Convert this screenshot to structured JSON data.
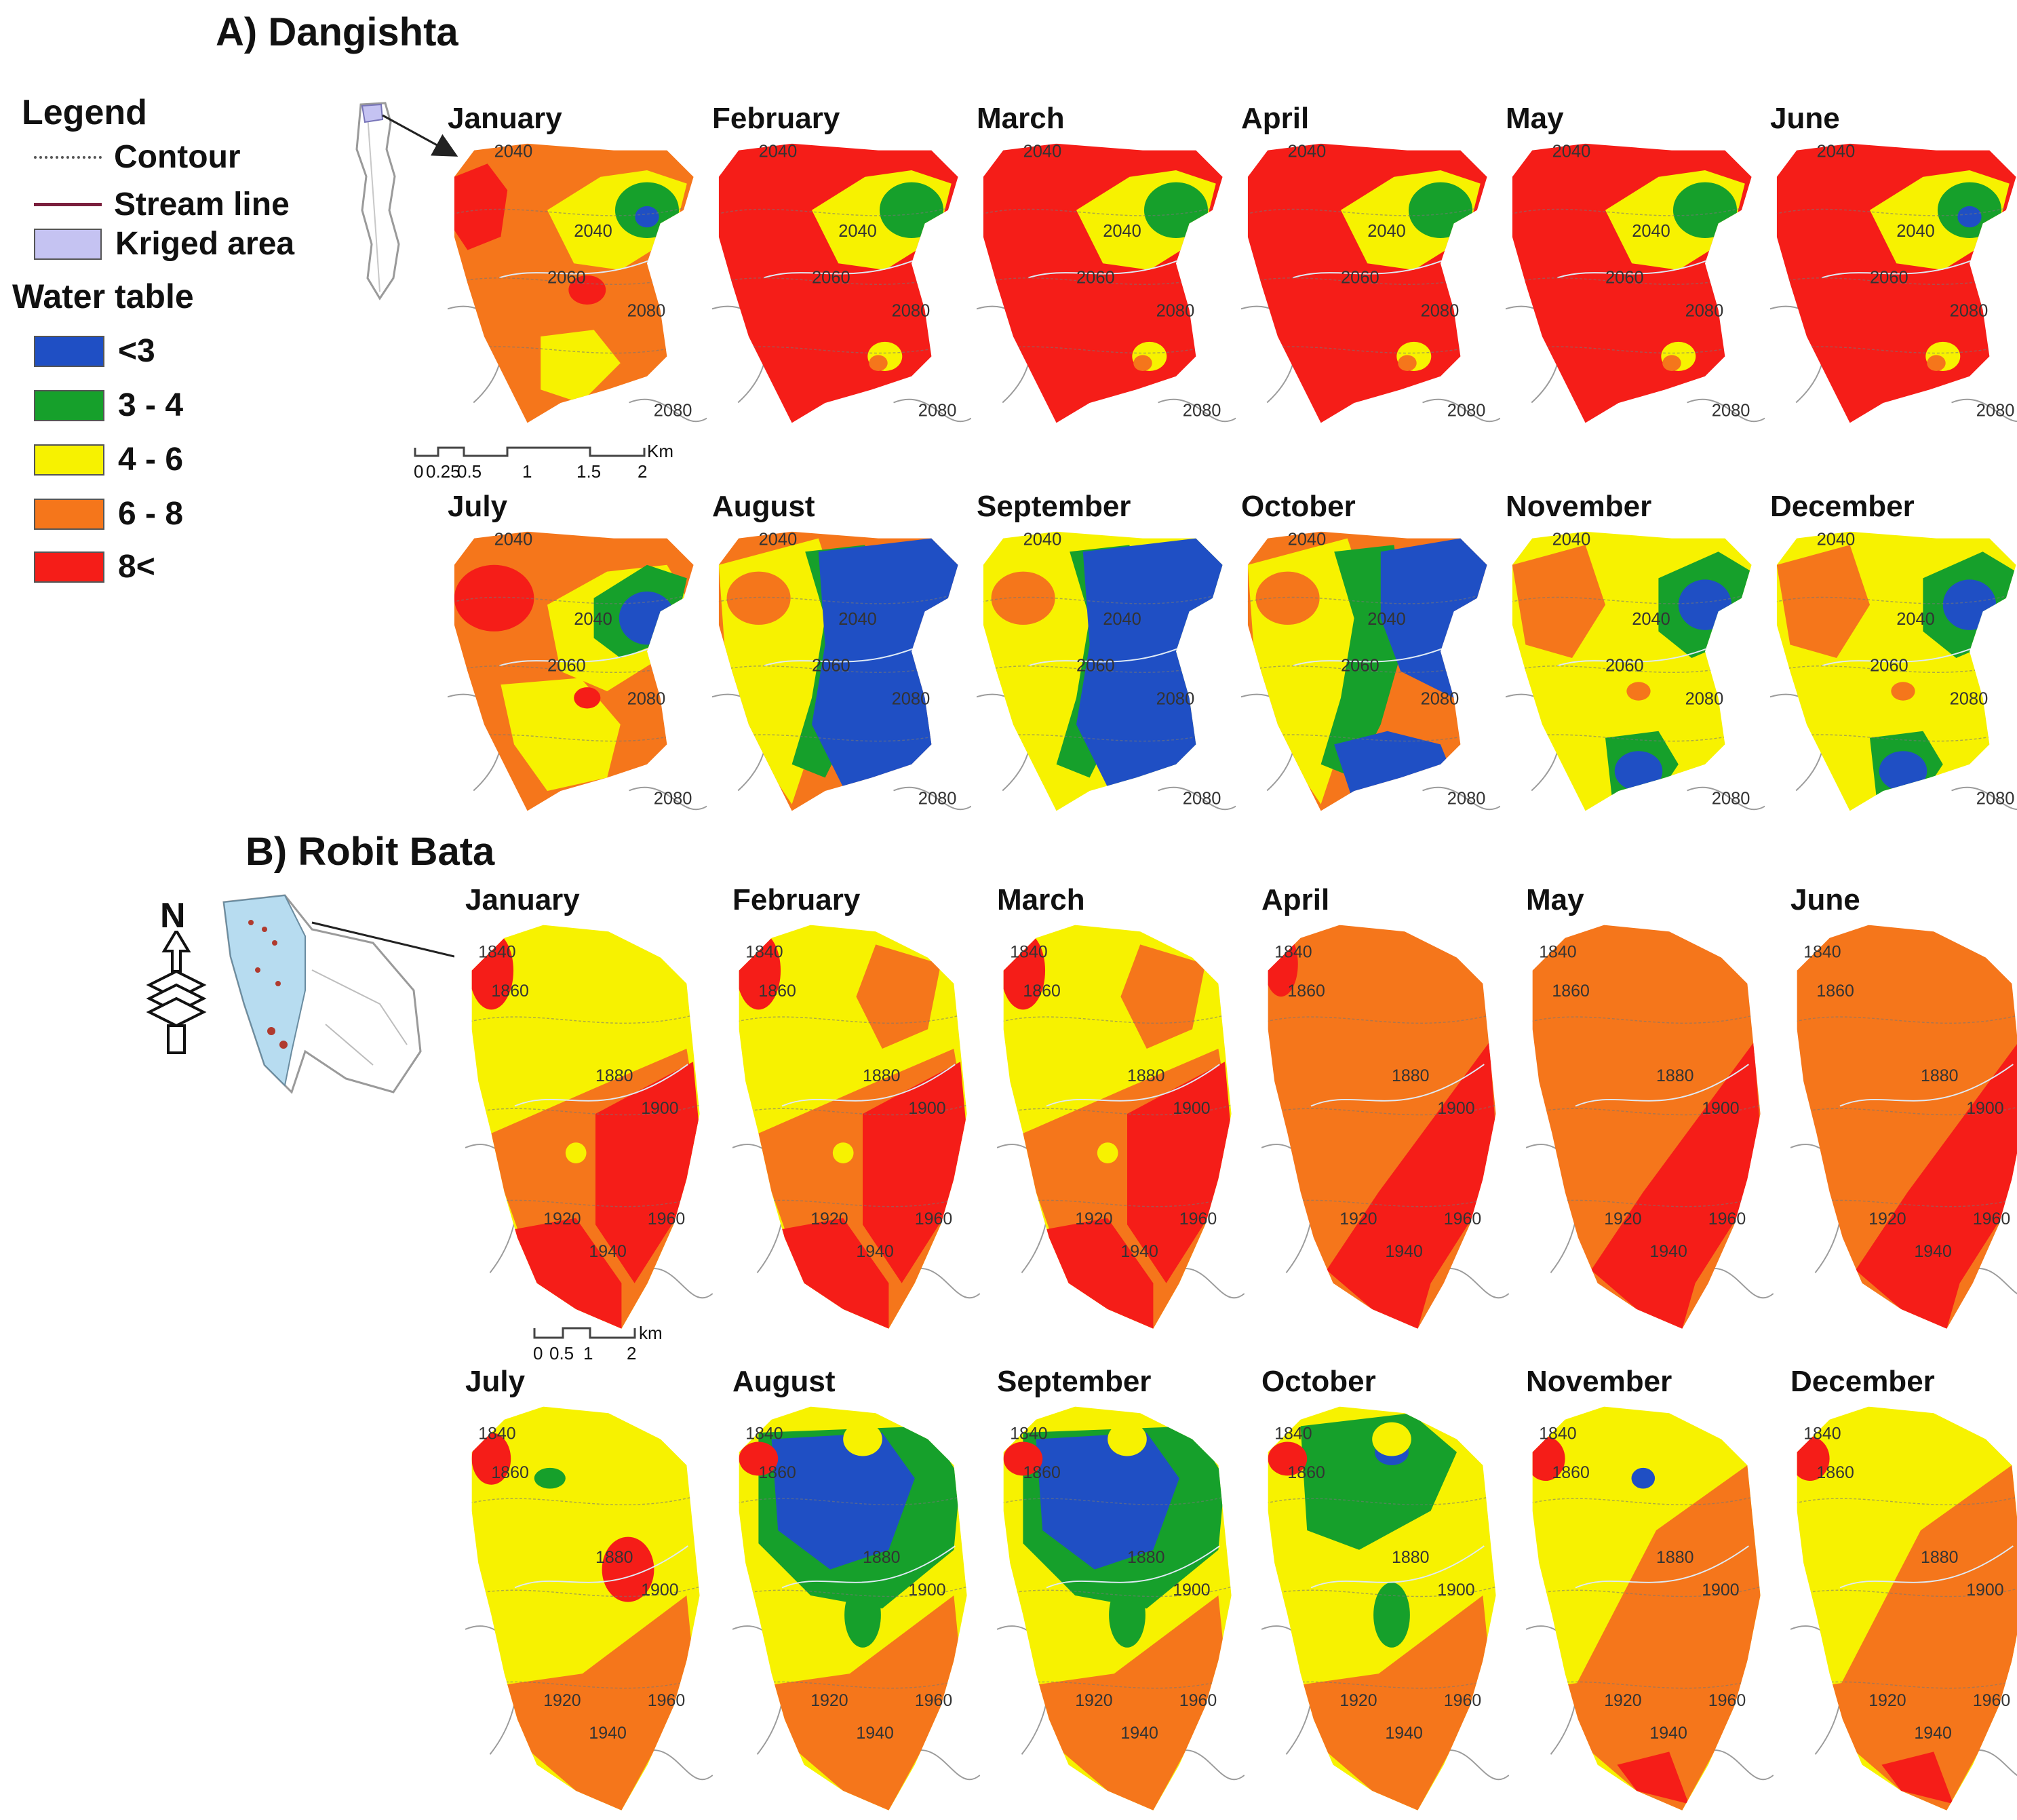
{
  "section_a": {
    "title": "A) Dangishta"
  },
  "section_b": {
    "title": "B) Robit Bata"
  },
  "legend": {
    "title": "Legend",
    "items": [
      {
        "label": "Contour",
        "style": "dotted",
        "color": "#555555"
      },
      {
        "label": "Stream line",
        "style": "line",
        "color": "#7a1f3d"
      },
      {
        "label": "Kriged area",
        "style": "fill",
        "color": "#c5c3f2"
      }
    ],
    "water_table_title": "Water table",
    "classes": [
      {
        "label": "<3",
        "color": "#1f4fc4"
      },
      {
        "label": "3 - 4",
        "color": "#16a02b"
      },
      {
        "label": "4 - 6",
        "color": "#f7f200"
      },
      {
        "label": "6 - 8",
        "color": "#f5761b"
      },
      {
        "label": "8<",
        "color": "#f51d18"
      }
    ]
  },
  "scale_a": {
    "labels": [
      "0",
      "0.25",
      "0.5",
      "1",
      "1.5",
      "2"
    ],
    "unit": "Km"
  },
  "scale_b": {
    "labels": [
      "0",
      "0.5",
      "1",
      "2"
    ],
    "unit": "km"
  },
  "north_label": "N",
  "dangishta": {
    "contours": [
      "2040",
      "2040",
      "2060",
      "2080",
      "2080"
    ],
    "months": [
      {
        "name": "January"
      },
      {
        "name": "February"
      },
      {
        "name": "March"
      },
      {
        "name": "April"
      },
      {
        "name": "May"
      },
      {
        "name": "June"
      },
      {
        "name": "July"
      },
      {
        "name": "August"
      },
      {
        "name": "September"
      },
      {
        "name": "October"
      },
      {
        "name": "November"
      },
      {
        "name": "December"
      }
    ]
  },
  "robit": {
    "contours": [
      "1840",
      "1860",
      "1880",
      "1900",
      "1920",
      "1940",
      "1960"
    ],
    "months": [
      {
        "name": "January"
      },
      {
        "name": "February"
      },
      {
        "name": "March"
      },
      {
        "name": "April"
      },
      {
        "name": "May"
      },
      {
        "name": "June"
      },
      {
        "name": "July"
      },
      {
        "name": "August"
      },
      {
        "name": "September"
      },
      {
        "name": "October"
      },
      {
        "name": "November"
      },
      {
        "name": "December"
      }
    ]
  }
}
